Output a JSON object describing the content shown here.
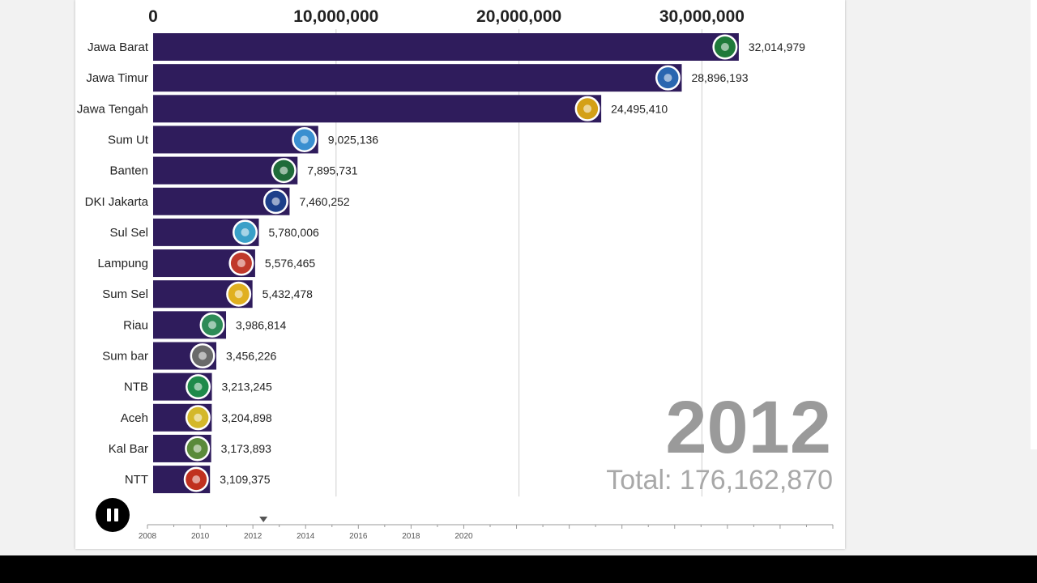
{
  "chart_data": {
    "type": "bar",
    "orientation": "horizontal",
    "title": "",
    "xlabel": "",
    "ylabel": "",
    "xlim": [
      0,
      36000000
    ],
    "x_ticks": [
      0,
      10000000,
      20000000,
      30000000
    ],
    "x_tick_labels": [
      "0",
      "10,000,000",
      "20,000,000",
      "30,000,000"
    ],
    "grid": true,
    "bar_color": "#2f1c5c",
    "categories": [
      "Jawa Barat",
      "Jawa Timur",
      "Jawa Tengah",
      "Sum Ut",
      "Banten",
      "DKI Jakarta",
      "Sul Sel",
      "Lampung",
      "Sum Sel",
      "Riau",
      "Sum bar",
      "NTB",
      "Aceh",
      "Kal Bar",
      "NTT"
    ],
    "values": [
      32014979,
      28896193,
      24495410,
      9025136,
      7895731,
      7460252,
      5780006,
      5576465,
      5432478,
      3986814,
      3456226,
      3213245,
      3204898,
      3173893,
      3109375
    ],
    "value_labels": [
      "32,014,979",
      "28,896,193",
      "24,495,410",
      "9,025,136",
      "7,895,731",
      "7,460,252",
      "5,780,006",
      "5,576,465",
      "5,432,478",
      "3,986,814",
      "3,456,226",
      "3,213,245",
      "3,204,898",
      "3,173,893",
      "3,109,375"
    ],
    "emblem_colors": [
      "#1f7a3a",
      "#2a66b0",
      "#d4a017",
      "#3a8fd0",
      "#1f6b3a",
      "#1d3f8a",
      "#3aa0c8",
      "#c0392b",
      "#e0b020",
      "#2e8b57",
      "#6a6a6a",
      "#1f8a4a",
      "#d4b82a",
      "#5a8a3a",
      "#c0301f"
    ],
    "year": "2012",
    "total": "Total: 176,162,870"
  },
  "timeline": {
    "labels": [
      "2008",
      "2010",
      "2012",
      "2014",
      "2016",
      "2018",
      "2020"
    ],
    "range": [
      2008,
      2034
    ],
    "current": 2012.4
  },
  "controls": {
    "pause_icon": "pause-icon"
  }
}
